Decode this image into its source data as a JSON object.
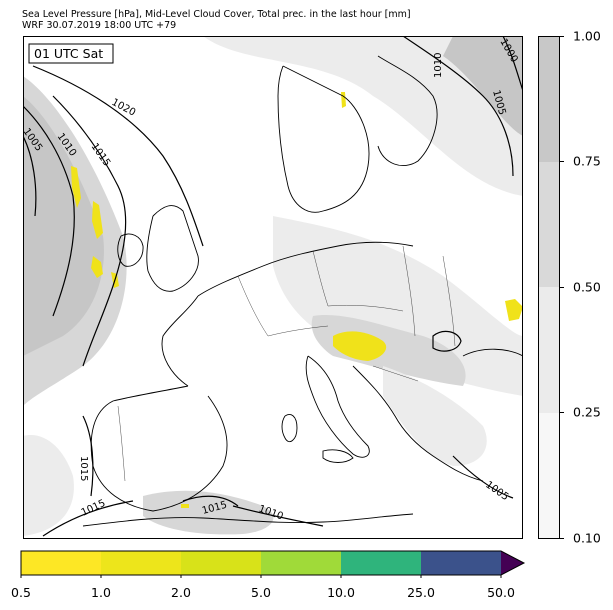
{
  "title": {
    "line1": "Sea Level Pressure [hPa], Mid-Level Cloud Cover, Total prec. in the last hour [mm]",
    "line2": "WRF 30.07.2019 18:00 UTC +79"
  },
  "map": {
    "time_label": "01 UTC Sat",
    "isobar_labels": [
      "1020",
      "1015",
      "1010",
      "1005",
      "1010",
      "1005",
      "1000",
      "1015",
      "1015",
      "1015",
      "1010",
      "1005"
    ]
  },
  "colors": {
    "sea": "#ffffff",
    "land": "#ffffff",
    "coast": "#000000",
    "cloud_light": "#ececec",
    "cloud_mid": "#d7d7d7",
    "cloud_dark": "#c6c6c6",
    "precip": "#f0e21a"
  },
  "cloud_colorbar": {
    "ticks": [
      "0.10",
      "0.25",
      "0.50",
      "0.75",
      "1.00"
    ],
    "colors": [
      "#f7f7f7",
      "#ebebeb",
      "#d9d9d9",
      "#c8c8c8"
    ]
  },
  "precip_colorbar": {
    "ticks": [
      "0.5",
      "1.0",
      "2.0",
      "5.0",
      "10.0",
      "25.0",
      "50.0"
    ],
    "colors": [
      "#fde725",
      "#ede51b",
      "#d8e219",
      "#a0da39",
      "#2fb47c",
      "#3b528b",
      "#440154"
    ]
  }
}
